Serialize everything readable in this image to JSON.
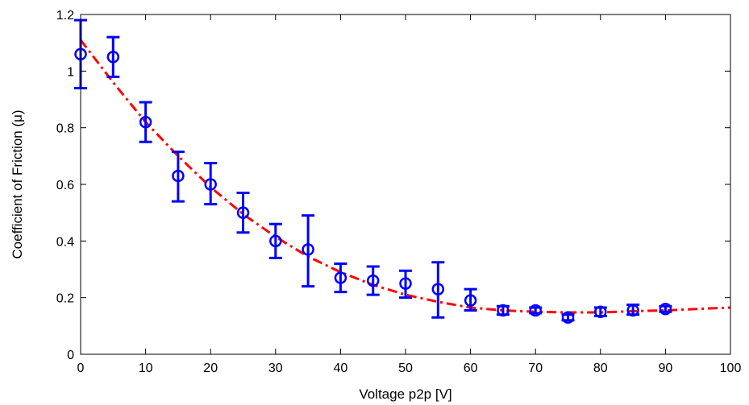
{
  "chart_data": {
    "type": "scatter",
    "xlabel": "Voltage p2p [V]",
    "ylabel": "Coefficient of Friction (μ)",
    "xlim": [
      0,
      100
    ],
    "ylim": [
      0,
      1.2
    ],
    "x_ticks": [
      "0",
      "10",
      "20",
      "30",
      "40",
      "50",
      "60",
      "70",
      "80",
      "90",
      "100"
    ],
    "y_ticks": [
      "0",
      "0.2",
      "0.4",
      "0.6",
      "0.8",
      "1",
      "1.2"
    ],
    "grid": false,
    "series": [
      {
        "marker": "circle",
        "color": "#0000ff",
        "x": [
          0,
          5,
          10,
          15,
          20,
          25,
          30,
          35,
          40,
          45,
          50,
          55,
          60,
          65,
          70,
          75,
          80,
          85,
          90
        ],
        "y": [
          1.06,
          1.05,
          0.82,
          0.63,
          0.6,
          0.5,
          0.4,
          0.37,
          0.27,
          0.26,
          0.25,
          0.23,
          0.19,
          0.155,
          0.155,
          0.13,
          0.15,
          0.155,
          0.16
        ],
        "yerr_low": [
          0.94,
          0.98,
          0.75,
          0.54,
          0.53,
          0.43,
          0.34,
          0.24,
          0.22,
          0.21,
          0.2,
          0.13,
          0.155,
          0.14,
          0.145,
          0.12,
          0.135,
          0.14,
          0.15
        ],
        "yerr_high": [
          1.18,
          1.12,
          0.89,
          0.715,
          0.675,
          0.57,
          0.46,
          0.49,
          0.32,
          0.31,
          0.295,
          0.325,
          0.23,
          0.17,
          0.165,
          0.14,
          0.165,
          0.175,
          0.17
        ]
      },
      {
        "line_style": "dash-dot",
        "color": "#ff0000",
        "x": [
          0,
          5,
          10,
          15,
          20,
          25,
          30,
          35,
          40,
          45,
          50,
          55,
          60,
          65,
          70,
          75,
          80,
          85,
          90,
          95,
          100
        ],
        "y": [
          1.11,
          0.96,
          0.82,
          0.7,
          0.59,
          0.495,
          0.415,
          0.345,
          0.29,
          0.245,
          0.21,
          0.185,
          0.165,
          0.155,
          0.15,
          0.148,
          0.148,
          0.152,
          0.155,
          0.16,
          0.165
        ]
      }
    ]
  }
}
